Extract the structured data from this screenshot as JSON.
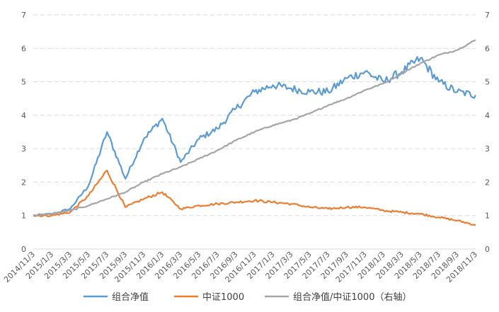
{
  "chart_data": {
    "type": "line",
    "title": "",
    "xlabel": "",
    "ylabel": "",
    "ylim": [
      0,
      7
    ],
    "y2lim": [
      0,
      7
    ],
    "y_ticks": [
      0,
      1,
      2,
      3,
      4,
      5,
      6,
      7
    ],
    "y2_ticks": [
      0,
      1,
      2,
      3,
      4,
      5,
      6,
      7
    ],
    "grid": "horizontal dashed",
    "legend_position": "bottom",
    "categories": [
      "2014/11/3",
      "2015/1/3",
      "2015/3/3",
      "2015/5/3",
      "2015/7/3",
      "2015/9/3",
      "2015/11/3",
      "2016/1/3",
      "2016/3/3",
      "2016/5/3",
      "2016/7/3",
      "2016/9/3",
      "2016/11/3",
      "2017/1/3",
      "2017/3/3",
      "2017/5/3",
      "2017/7/3",
      "2017/9/3",
      "2017/11/3",
      "2018/1/3",
      "2018/3/3",
      "2018/5/3",
      "2018/7/3",
      "2018/9/3",
      "2018/11/3"
    ],
    "series": [
      {
        "name": "组合净值",
        "axis": "left",
        "color": "#5b9bd5",
        "values": [
          1.0,
          1.05,
          1.2,
          1.9,
          3.5,
          2.1,
          3.3,
          3.9,
          2.6,
          3.3,
          3.6,
          4.2,
          4.7,
          4.9,
          4.8,
          4.7,
          4.7,
          5.1,
          5.3,
          5.0,
          5.3,
          5.7,
          5.0,
          4.7,
          4.6
        ]
      },
      {
        "name": "中证1000",
        "axis": "left",
        "color": "#ed7d31",
        "values": [
          1.0,
          1.0,
          1.1,
          1.6,
          2.35,
          1.25,
          1.5,
          1.7,
          1.2,
          1.3,
          1.35,
          1.4,
          1.45,
          1.4,
          1.35,
          1.25,
          1.2,
          1.25,
          1.25,
          1.15,
          1.1,
          1.05,
          0.95,
          0.85,
          0.72
        ]
      },
      {
        "name": "组合净值/中证1000（右轴）",
        "axis": "right",
        "color": "#a5a5a5",
        "values": [
          1.0,
          1.05,
          1.15,
          1.3,
          1.5,
          1.7,
          2.0,
          2.25,
          2.45,
          2.7,
          2.95,
          3.25,
          3.5,
          3.7,
          3.85,
          4.05,
          4.3,
          4.5,
          4.75,
          4.95,
          5.25,
          5.55,
          5.8,
          5.95,
          6.25
        ]
      }
    ]
  }
}
